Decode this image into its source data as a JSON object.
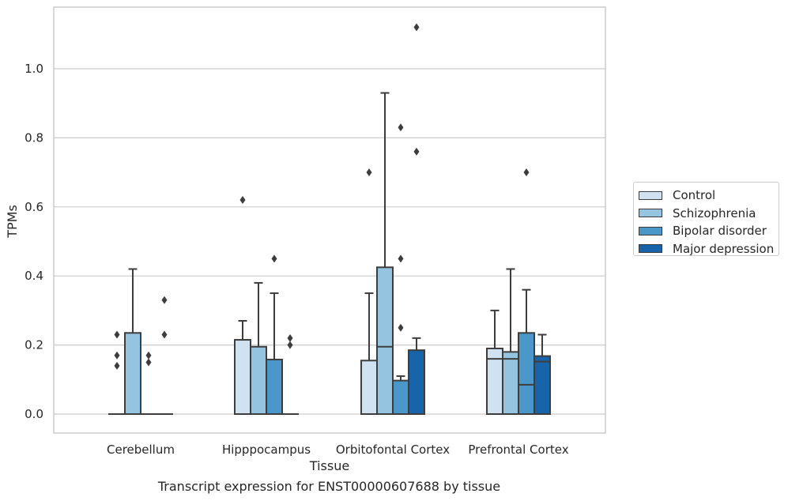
{
  "chart_data": {
    "type": "boxplot",
    "caption": "Transcript expression for ENST00000607688 by tissue",
    "xlabel": "Tissue",
    "ylabel": "TPMs",
    "ylim": [
      -0.055,
      1.18
    ],
    "yticks": [
      "0.0",
      "0.2",
      "0.4",
      "0.6",
      "0.8",
      "1.0"
    ],
    "grid": true,
    "legend_position": "right",
    "categories": [
      "Cerebellum",
      "Hipppocampus",
      "Orbitofontal Cortex",
      "Prefrontal Cortex"
    ],
    "series": [
      {
        "name": "Control",
        "color": "#d0e1f2",
        "boxes": [
          {
            "q1": 0,
            "median": 0,
            "q3": 0,
            "whislo": 0,
            "whishi": 0,
            "fliers": [
              0.23,
              0.17,
              0.14
            ]
          },
          {
            "q1": 0,
            "median": 0,
            "q3": 0.215,
            "whislo": 0,
            "whishi": 0.27,
            "fliers": [
              0.62
            ]
          },
          {
            "q1": 0,
            "median": 0,
            "q3": 0.155,
            "whislo": 0,
            "whishi": 0.35,
            "fliers": [
              0.7
            ]
          },
          {
            "q1": 0,
            "median": 0.16,
            "q3": 0.19,
            "whislo": 0,
            "whishi": 0.3,
            "fliers": []
          }
        ]
      },
      {
        "name": "Schizophrenia",
        "color": "#94c4df",
        "boxes": [
          {
            "q1": 0,
            "median": 0,
            "q3": 0.235,
            "whislo": 0,
            "whishi": 0.42,
            "fliers": []
          },
          {
            "q1": 0,
            "median": 0,
            "q3": 0.195,
            "whislo": 0,
            "whishi": 0.38,
            "fliers": []
          },
          {
            "q1": 0,
            "median": 0.195,
            "q3": 0.425,
            "whislo": 0,
            "whishi": 0.93,
            "fliers": []
          },
          {
            "q1": 0,
            "median": 0.16,
            "q3": 0.18,
            "whislo": 0,
            "whishi": 0.42,
            "fliers": []
          }
        ]
      },
      {
        "name": "Bipolar disorder",
        "color": "#4a98c9",
        "boxes": [
          {
            "q1": 0,
            "median": 0,
            "q3": 0,
            "whislo": 0,
            "whishi": 0,
            "fliers": [
              0.17,
              0.15
            ]
          },
          {
            "q1": 0,
            "median": 0,
            "q3": 0.158,
            "whislo": 0,
            "whishi": 0.35,
            "fliers": [
              0.45
            ]
          },
          {
            "q1": 0,
            "median": 0,
            "q3": 0.097,
            "whislo": 0,
            "whishi": 0.11,
            "fliers": [
              0.83,
              0.45,
              0.25
            ]
          },
          {
            "q1": 0,
            "median": 0.085,
            "q3": 0.235,
            "whislo": 0,
            "whishi": 0.36,
            "fliers": [
              0.7
            ]
          }
        ]
      },
      {
        "name": "Major depression",
        "color": "#1764ab",
        "boxes": [
          {
            "q1": 0,
            "median": 0,
            "q3": 0,
            "whislo": 0,
            "whishi": 0,
            "fliers": [
              0.33,
              0.23
            ]
          },
          {
            "q1": 0,
            "median": 0,
            "q3": 0,
            "whislo": 0,
            "whishi": 0,
            "fliers": [
              0.22,
              0.2
            ]
          },
          {
            "q1": 0,
            "median": 0,
            "q3": 0.185,
            "whislo": 0,
            "whishi": 0.22,
            "fliers": [
              1.12,
              0.76
            ]
          },
          {
            "q1": 0,
            "median": 0.152,
            "q3": 0.168,
            "whislo": 0,
            "whishi": 0.23,
            "fliers": []
          }
        ]
      }
    ]
  }
}
